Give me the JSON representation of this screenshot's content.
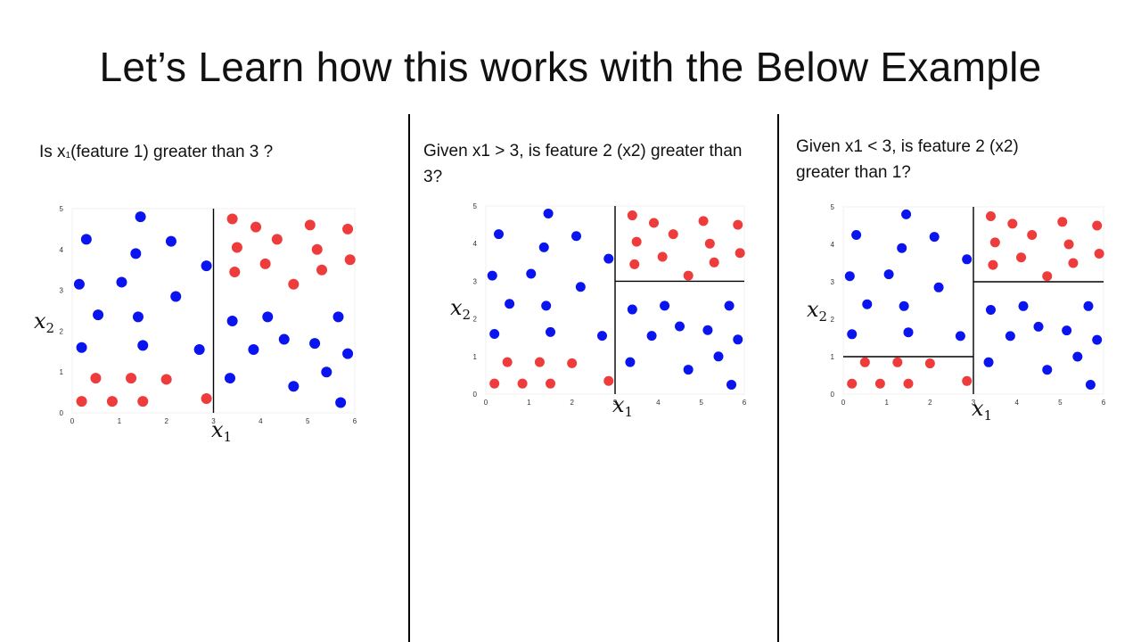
{
  "slide": {
    "title": "Let’s Learn how this works with the Below Example"
  },
  "panels": [
    {
      "question_pre": "Is x",
      "question_sub": "1",
      "question_post": "(feature 1) greater than 3 ?"
    },
    {
      "question_pre": "Given x1 > 3, is feature 2 (x2) greater than 3?",
      "question_sub": "",
      "question_post": ""
    },
    {
      "question_pre": "Given x1 < 3, is feature 2 (x2) greater than 1?",
      "question_sub": "",
      "question_post": ""
    }
  ],
  "colors": {
    "blue": "#0a14ee",
    "red": "#ee3b3b"
  },
  "chart_data": [
    {
      "type": "scatter",
      "title": "",
      "xlabel": "x1",
      "ylabel": "x2",
      "xlim": [
        0,
        6
      ],
      "ylim": [
        0,
        5
      ],
      "xticks": [
        "0",
        "1",
        "2",
        "3",
        "4",
        "5",
        "6"
      ],
      "yticks": [
        "0",
        "1",
        "2",
        "3",
        "4",
        "5"
      ],
      "split_lines": [
        {
          "orientation": "vertical",
          "x": 3,
          "from": 0,
          "to": 5
        }
      ],
      "series": [
        {
          "color": "blue",
          "points": [
            [
              0.3,
              4.25
            ],
            [
              1.45,
              4.8
            ],
            [
              2.1,
              4.2
            ],
            [
              1.35,
              3.9
            ],
            [
              0.15,
              3.15
            ],
            [
              1.05,
              3.2
            ],
            [
              2.2,
              2.85
            ],
            [
              2.85,
              3.6
            ],
            [
              0.55,
              2.4
            ],
            [
              1.4,
              2.35
            ],
            [
              0.2,
              1.6
            ],
            [
              1.5,
              1.65
            ],
            [
              2.7,
              1.55
            ],
            [
              3.4,
              2.25
            ],
            [
              4.15,
              2.35
            ],
            [
              5.65,
              2.35
            ],
            [
              3.85,
              1.55
            ],
            [
              4.5,
              1.8
            ],
            [
              5.15,
              1.7
            ],
            [
              5.85,
              1.45
            ],
            [
              3.35,
              0.85
            ],
            [
              4.7,
              0.65
            ],
            [
              5.4,
              1.0
            ],
            [
              5.7,
              0.25
            ]
          ]
        },
        {
          "color": "red",
          "points": [
            [
              3.4,
              4.75
            ],
            [
              3.9,
              4.55
            ],
            [
              4.35,
              4.25
            ],
            [
              5.05,
              4.6
            ],
            [
              5.85,
              4.5
            ],
            [
              3.5,
              4.05
            ],
            [
              4.1,
              3.65
            ],
            [
              5.2,
              4.0
            ],
            [
              5.9,
              3.75
            ],
            [
              3.45,
              3.45
            ],
            [
              4.7,
              3.15
            ],
            [
              5.3,
              3.5
            ],
            [
              0.5,
              0.85
            ],
            [
              1.25,
              0.85
            ],
            [
              2.0,
              0.82
            ],
            [
              2.85,
              0.35
            ],
            [
              0.2,
              0.28
            ],
            [
              0.85,
              0.28
            ],
            [
              1.5,
              0.28
            ]
          ]
        }
      ]
    },
    {
      "type": "scatter",
      "title": "",
      "xlabel": "x1",
      "ylabel": "x2",
      "xlim": [
        0,
        6
      ],
      "ylim": [
        0,
        5
      ],
      "xticks": [
        "0",
        "1",
        "2",
        "3",
        "4",
        "5",
        "6"
      ],
      "yticks": [
        "0",
        "1",
        "2",
        "3",
        "4",
        "5"
      ],
      "split_lines": [
        {
          "orientation": "vertical",
          "x": 3,
          "from": 0,
          "to": 5
        },
        {
          "orientation": "horizontal",
          "y": 3,
          "from": 3,
          "to": 6
        }
      ],
      "series": [
        {
          "color": "blue",
          "points": [
            [
              0.3,
              4.25
            ],
            [
              1.45,
              4.8
            ],
            [
              2.1,
              4.2
            ],
            [
              1.35,
              3.9
            ],
            [
              0.15,
              3.15
            ],
            [
              1.05,
              3.2
            ],
            [
              2.2,
              2.85
            ],
            [
              2.85,
              3.6
            ],
            [
              0.55,
              2.4
            ],
            [
              1.4,
              2.35
            ],
            [
              0.2,
              1.6
            ],
            [
              1.5,
              1.65
            ],
            [
              2.7,
              1.55
            ],
            [
              3.4,
              2.25
            ],
            [
              4.15,
              2.35
            ],
            [
              5.65,
              2.35
            ],
            [
              3.85,
              1.55
            ],
            [
              4.5,
              1.8
            ],
            [
              5.15,
              1.7
            ],
            [
              5.85,
              1.45
            ],
            [
              3.35,
              0.85
            ],
            [
              4.7,
              0.65
            ],
            [
              5.4,
              1.0
            ],
            [
              5.7,
              0.25
            ]
          ]
        },
        {
          "color": "red",
          "points": [
            [
              3.4,
              4.75
            ],
            [
              3.9,
              4.55
            ],
            [
              4.35,
              4.25
            ],
            [
              5.05,
              4.6
            ],
            [
              5.85,
              4.5
            ],
            [
              3.5,
              4.05
            ],
            [
              4.1,
              3.65
            ],
            [
              5.2,
              4.0
            ],
            [
              5.9,
              3.75
            ],
            [
              3.45,
              3.45
            ],
            [
              4.7,
              3.15
            ],
            [
              5.3,
              3.5
            ],
            [
              0.5,
              0.85
            ],
            [
              1.25,
              0.85
            ],
            [
              2.0,
              0.82
            ],
            [
              2.85,
              0.35
            ],
            [
              0.2,
              0.28
            ],
            [
              0.85,
              0.28
            ],
            [
              1.5,
              0.28
            ]
          ]
        }
      ]
    },
    {
      "type": "scatter",
      "title": "",
      "xlabel": "x1",
      "ylabel": "x2",
      "xlim": [
        0,
        6
      ],
      "ylim": [
        0,
        5
      ],
      "xticks": [
        "0",
        "1",
        "2",
        "3",
        "4",
        "5",
        "6"
      ],
      "yticks": [
        "0",
        "1",
        "2",
        "3",
        "4",
        "5"
      ],
      "split_lines": [
        {
          "orientation": "vertical",
          "x": 3,
          "from": 0,
          "to": 5
        },
        {
          "orientation": "horizontal",
          "y": 3,
          "from": 3,
          "to": 6
        },
        {
          "orientation": "horizontal",
          "y": 1,
          "from": 0,
          "to": 3
        }
      ],
      "series": [
        {
          "color": "blue",
          "points": [
            [
              0.3,
              4.25
            ],
            [
              1.45,
              4.8
            ],
            [
              2.1,
              4.2
            ],
            [
              1.35,
              3.9
            ],
            [
              0.15,
              3.15
            ],
            [
              1.05,
              3.2
            ],
            [
              2.2,
              2.85
            ],
            [
              2.85,
              3.6
            ],
            [
              0.55,
              2.4
            ],
            [
              1.4,
              2.35
            ],
            [
              0.2,
              1.6
            ],
            [
              1.5,
              1.65
            ],
            [
              2.7,
              1.55
            ],
            [
              3.4,
              2.25
            ],
            [
              4.15,
              2.35
            ],
            [
              5.65,
              2.35
            ],
            [
              3.85,
              1.55
            ],
            [
              4.5,
              1.8
            ],
            [
              5.15,
              1.7
            ],
            [
              5.85,
              1.45
            ],
            [
              3.35,
              0.85
            ],
            [
              4.7,
              0.65
            ],
            [
              5.4,
              1.0
            ],
            [
              5.7,
              0.25
            ]
          ]
        },
        {
          "color": "red",
          "points": [
            [
              3.4,
              4.75
            ],
            [
              3.9,
              4.55
            ],
            [
              4.35,
              4.25
            ],
            [
              5.05,
              4.6
            ],
            [
              5.85,
              4.5
            ],
            [
              3.5,
              4.05
            ],
            [
              4.1,
              3.65
            ],
            [
              5.2,
              4.0
            ],
            [
              5.9,
              3.75
            ],
            [
              3.45,
              3.45
            ],
            [
              4.7,
              3.15
            ],
            [
              5.3,
              3.5
            ],
            [
              0.5,
              0.85
            ],
            [
              1.25,
              0.85
            ],
            [
              2.0,
              0.82
            ],
            [
              2.85,
              0.35
            ],
            [
              0.2,
              0.28
            ],
            [
              0.85,
              0.28
            ],
            [
              1.5,
              0.28
            ]
          ]
        }
      ]
    }
  ]
}
